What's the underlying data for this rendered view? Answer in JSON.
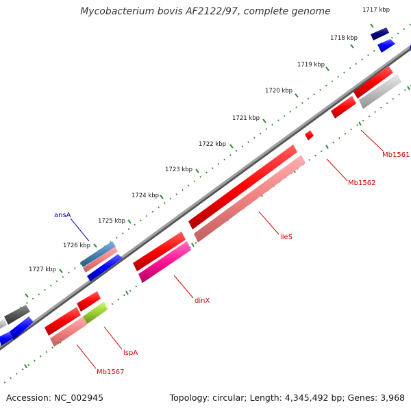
{
  "title": "Mycobacterium bovis AF2122/97, complete genome",
  "footer": {
    "accession": "Accession: NC_002945",
    "summary": "Topology: circular; Length: 4,345,492 bp; Genes: 3,968"
  },
  "ruler": [
    "1717 kbp",
    "1718 kbp",
    "1719 kbp",
    "1720 kbp",
    "1721 kbp",
    "1722 kbp",
    "1723 kbp",
    "1724 kbp",
    "1725 kbp",
    "1726 kbp",
    "1727 kbp"
  ],
  "gene_labels": {
    "ansA": "ansA",
    "Mb1561": "Mb1561",
    "Mb1562": "Mb1562",
    "ileS": "ileS",
    "dinX": "dinX",
    "lspA": "lspA",
    "Mb1567": "Mb1567"
  },
  "colors": {
    "backbone": "#8a8a8a",
    "tick": "#2e8b2e",
    "red_gene": "#ff0000",
    "pink_gene": "#f08080",
    "magenta_gene": "#ff1493",
    "blue_gene": "#0000ff",
    "navy_gene": "#000080",
    "steel_gene": "#4682b4",
    "lime_gene": "#9acd32",
    "gray_gene": "#b0b0b0",
    "dark_gray_gene": "#555555",
    "label_red": "#cc0000",
    "label_blue": "#0000cc"
  }
}
